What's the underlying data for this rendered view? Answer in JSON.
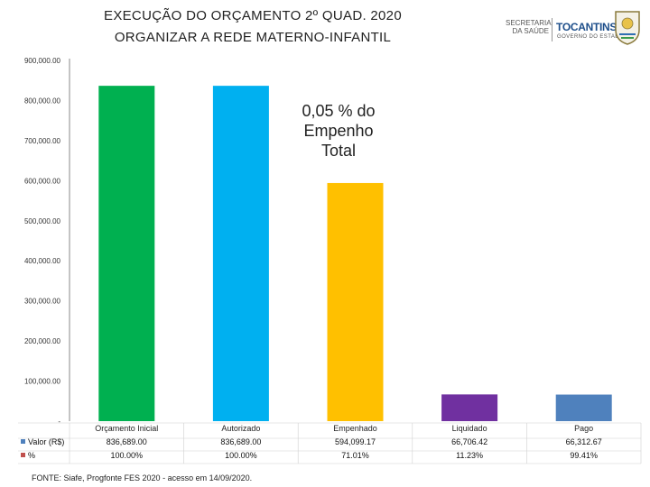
{
  "header": {
    "title_line1": "EXECUÇÃO DO ORÇAMENTO 2º QUAD. 2020",
    "title_line2": "ORGANIZAR A REDE MATERNO-INFANTIL",
    "logo_secretaria": "SECRETARIA DA SAÚDE",
    "logo_tocantins": "TOCANTINS",
    "logo_governo": "GOVERNO DO ESTADO"
  },
  "annotation": "0,05 % do Empenho Total",
  "footer": "FONTE: Siafe, Progfonte FES 2020 - acesso em 14/09/2020.",
  "colors": {
    "bars": [
      "#00b050",
      "#00b0f0",
      "#ffc000",
      "#7030a0",
      "#4f81bd"
    ],
    "legend_valor": "#4f81bd",
    "legend_pct": "#c0504d"
  },
  "chart_data": {
    "type": "bar",
    "categories": [
      "Orçamento Inicial",
      "Autorizado",
      "Empenhado",
      "Liquidado",
      "Pago"
    ],
    "series": [
      {
        "name": "Valor (R$)",
        "values": [
          836689.0,
          836689.0,
          594099.17,
          66706.42,
          66312.67
        ]
      }
    ],
    "table": {
      "rows": [
        {
          "label": "Valor (R$)",
          "cells": [
            "836,689.00",
            "836,689.00",
            "594,099.17",
            "66,706.42",
            "66,312.67"
          ]
        },
        {
          "label": "%",
          "cells": [
            "100.00%",
            "100.00%",
            "71.01%",
            "11.23%",
            "99.41%"
          ]
        }
      ]
    },
    "y_ticks": [
      "-",
      "100,000.00",
      "200,000.00",
      "300,000.00",
      "400,000.00",
      "500,000.00",
      "600,000.00",
      "700,000.00",
      "800,000.00",
      "900,000.00"
    ],
    "ylim": [
      0,
      900000
    ],
    "grid": false,
    "legend": "table-left"
  }
}
